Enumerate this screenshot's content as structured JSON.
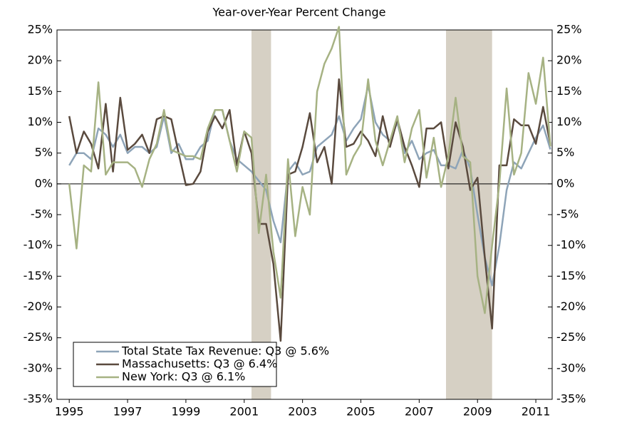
{
  "chart_data": {
    "type": "line",
    "subtitle": "Year-over-Year Percent Change",
    "x": [
      1995,
      1995.25,
      1995.5,
      1995.75,
      1996,
      1996.25,
      1996.5,
      1996.75,
      1997,
      1997.25,
      1997.5,
      1997.75,
      1998,
      1998.25,
      1998.5,
      1998.75,
      1999,
      1999.25,
      1999.5,
      1999.75,
      2000,
      2000.25,
      2000.5,
      2000.75,
      2001,
      2001.25,
      2001.5,
      2001.75,
      2002,
      2002.25,
      2002.5,
      2002.75,
      2003,
      2003.25,
      2003.5,
      2003.75,
      2004,
      2004.25,
      2004.5,
      2004.75,
      2005,
      2005.25,
      2005.5,
      2005.75,
      2006,
      2006.25,
      2006.5,
      2006.75,
      2007,
      2007.25,
      2007.5,
      2007.75,
      2008,
      2008.25,
      2008.5,
      2008.75,
      2009,
      2009.25,
      2009.5,
      2009.75,
      2010,
      2010.25,
      2010.5,
      2010.75,
      2011,
      2011.25,
      2011.5
    ],
    "series": [
      {
        "name": "Total State Tax Revenue: Q3 @ 5.6%",
        "color": "#8ea4b8",
        "values": [
          3,
          5,
          5,
          4,
          9,
          8,
          6,
          8,
          5,
          6,
          6,
          5,
          6,
          11,
          5,
          6.5,
          4,
          4,
          6,
          7,
          12,
          12,
          7,
          4,
          3,
          2,
          0.5,
          -1,
          -6,
          -9.5,
          2,
          3.5,
          1.5,
          2,
          6,
          7,
          8,
          11,
          7,
          9,
          10.5,
          16,
          10,
          8,
          7,
          10,
          5,
          7,
          4,
          5,
          5.5,
          3,
          3,
          2.5,
          5.5,
          2.5,
          -5,
          -12,
          -16.5,
          -10,
          -1,
          3.5,
          2.5,
          5,
          7.5,
          9.5,
          5.6
        ]
      },
      {
        "name": "Massachusetts: Q3 @ 6.4%",
        "color": "#5a4a3e",
        "values": [
          11,
          5,
          8.5,
          6.5,
          2.5,
          13,
          2,
          14,
          5.5,
          6.5,
          8,
          5,
          10.5,
          11,
          10.5,
          5,
          -0.2,
          0,
          2,
          8.5,
          11,
          9,
          12,
          3,
          8.5,
          5,
          -6.5,
          -6.5,
          -13,
          -25.5,
          1.5,
          2,
          6,
          11.5,
          3.5,
          6,
          0,
          17,
          6,
          6.5,
          8.5,
          7,
          4.5,
          11,
          6,
          10.5,
          6,
          3,
          -0.5,
          9,
          9,
          10,
          2.5,
          10,
          6,
          -1,
          1,
          -12,
          -23.5,
          3,
          3,
          10.5,
          9.5,
          9.5,
          6.5,
          12.5,
          6.4
        ]
      },
      {
        "name": "New York: Q3 @ 6.1%",
        "color": "#a6b283",
        "values": [
          0,
          -10.5,
          3,
          2,
          16.5,
          1.5,
          3.5,
          3.5,
          3.5,
          2.5,
          -0.5,
          4,
          6.5,
          12,
          5.5,
          5,
          4.5,
          4.5,
          4,
          9,
          12,
          12,
          7,
          2,
          8.5,
          7.5,
          -8,
          1.5,
          -11,
          -18.5,
          4,
          -8.5,
          -0.5,
          -5,
          15,
          19.5,
          22,
          25.5,
          1.5,
          4.5,
          6.5,
          17,
          7,
          3,
          7,
          11,
          3.5,
          9,
          12,
          1,
          7.5,
          -0.5,
          4.5,
          14,
          4.5,
          3.5,
          -15,
          -21,
          -10,
          0,
          15.5,
          1.5,
          5,
          18,
          13,
          20.5,
          6.1
        ]
      }
    ],
    "shaded_periods": [
      [
        2001.25,
        2001.92
      ],
      [
        2007.92,
        2009.5
      ]
    ],
    "shade_color": "#d6d0c4",
    "xlim": [
      1994.58,
      2011.56
    ],
    "xticks": [
      1995,
      1997,
      1999,
      2001,
      2003,
      2005,
      2007,
      2009,
      2011
    ],
    "ylim": [
      -35,
      25
    ],
    "yticks": [
      {
        "value": -35,
        "label": "-35%"
      },
      {
        "value": -30,
        "label": "-30%"
      },
      {
        "value": -25,
        "label": "-25%"
      },
      {
        "value": -20,
        "label": "-20%"
      },
      {
        "value": -15,
        "label": "-15%"
      },
      {
        "value": -10,
        "label": "-10%"
      },
      {
        "value": -5,
        "label": "-5%"
      },
      {
        "value": 0,
        "label": "0%"
      },
      {
        "value": 5,
        "label": "5%"
      },
      {
        "value": 10,
        "label": "10%"
      },
      {
        "value": 15,
        "label": "15%"
      },
      {
        "value": 20,
        "label": "20%"
      },
      {
        "value": 25,
        "label": "25%"
      }
    ],
    "y2lim": [
      -35,
      25
    ],
    "y2ticks": [
      {
        "value": -35,
        "label": "-35%"
      },
      {
        "value": -30,
        "label": "-30%"
      },
      {
        "value": -25,
        "label": "-25%"
      },
      {
        "value": -20,
        "label": "-20%"
      },
      {
        "value": -15,
        "label": "-15%"
      },
      {
        "value": -10,
        "label": "-10%"
      },
      {
        "value": -5,
        "label": "-5%"
      },
      {
        "value": 0,
        "label": "0%"
      },
      {
        "value": 5,
        "label": "5%"
      },
      {
        "value": 10,
        "label": "10%"
      },
      {
        "value": 15,
        "label": "15%"
      },
      {
        "value": 20,
        "label": "20%"
      },
      {
        "value": 25,
        "label": "25%"
      }
    ],
    "legend": "lower left"
  }
}
